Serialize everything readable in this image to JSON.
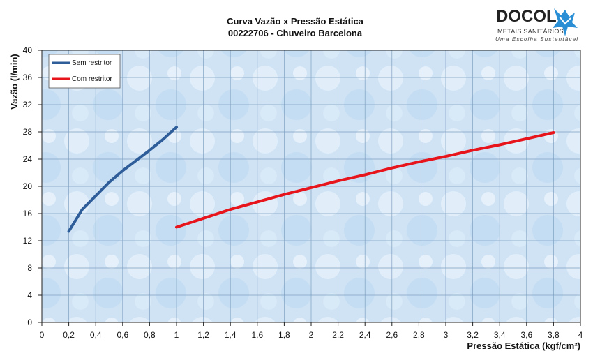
{
  "header": {
    "title_line1": "Curva Vazão x Pressão Estática",
    "title_line2": "00222706 - Chuveiro Barcelona"
  },
  "logo": {
    "name": "DOCOL",
    "subtitle": "METAIS SANITÁRIOS",
    "tagline": "Uma Escolha Sustentável"
  },
  "chart_data": {
    "type": "line",
    "title": "Curva Vazão x Pressão Estática",
    "subtitle": "00222706 - Chuveiro Barcelona",
    "xlabel": "Pressão Estática (kgf/cm²)",
    "ylabel": "Vazão (l/min)",
    "xlim": [
      0,
      4
    ],
    "ylim": [
      0,
      40
    ],
    "x_ticks": [
      "0",
      "0,2",
      "0,4",
      "0,6",
      "0,8",
      "1",
      "1,2",
      "1,4",
      "1,6",
      "1,8",
      "2",
      "2,2",
      "2,4",
      "2,6",
      "2,8",
      "3",
      "3,2",
      "3,4",
      "3,6",
      "3,8",
      "4"
    ],
    "y_ticks": [
      "0",
      "4",
      "8",
      "12",
      "16",
      "20",
      "24",
      "28",
      "32",
      "36",
      "40"
    ],
    "grid": true,
    "legend_position": "top-left",
    "series": [
      {
        "name": "Sem restritor",
        "color": "#2e5d9a",
        "x": [
          0.2,
          0.3,
          0.4,
          0.5,
          0.6,
          0.7,
          0.8,
          0.9,
          1.0
        ],
        "y": [
          13.4,
          16.6,
          18.6,
          20.6,
          22.3,
          23.8,
          25.3,
          26.9,
          28.7
        ]
      },
      {
        "name": "Com restritor",
        "color": "#e8141b",
        "x": [
          1.0,
          1.2,
          1.4,
          1.6,
          1.8,
          2.0,
          2.2,
          2.4,
          2.6,
          2.8,
          3.0,
          3.2,
          3.4,
          3.6,
          3.8
        ],
        "y": [
          14.0,
          15.3,
          16.6,
          17.7,
          18.8,
          19.8,
          20.8,
          21.7,
          22.7,
          23.6,
          24.4,
          25.3,
          26.1,
          27.0,
          27.9
        ]
      }
    ]
  }
}
